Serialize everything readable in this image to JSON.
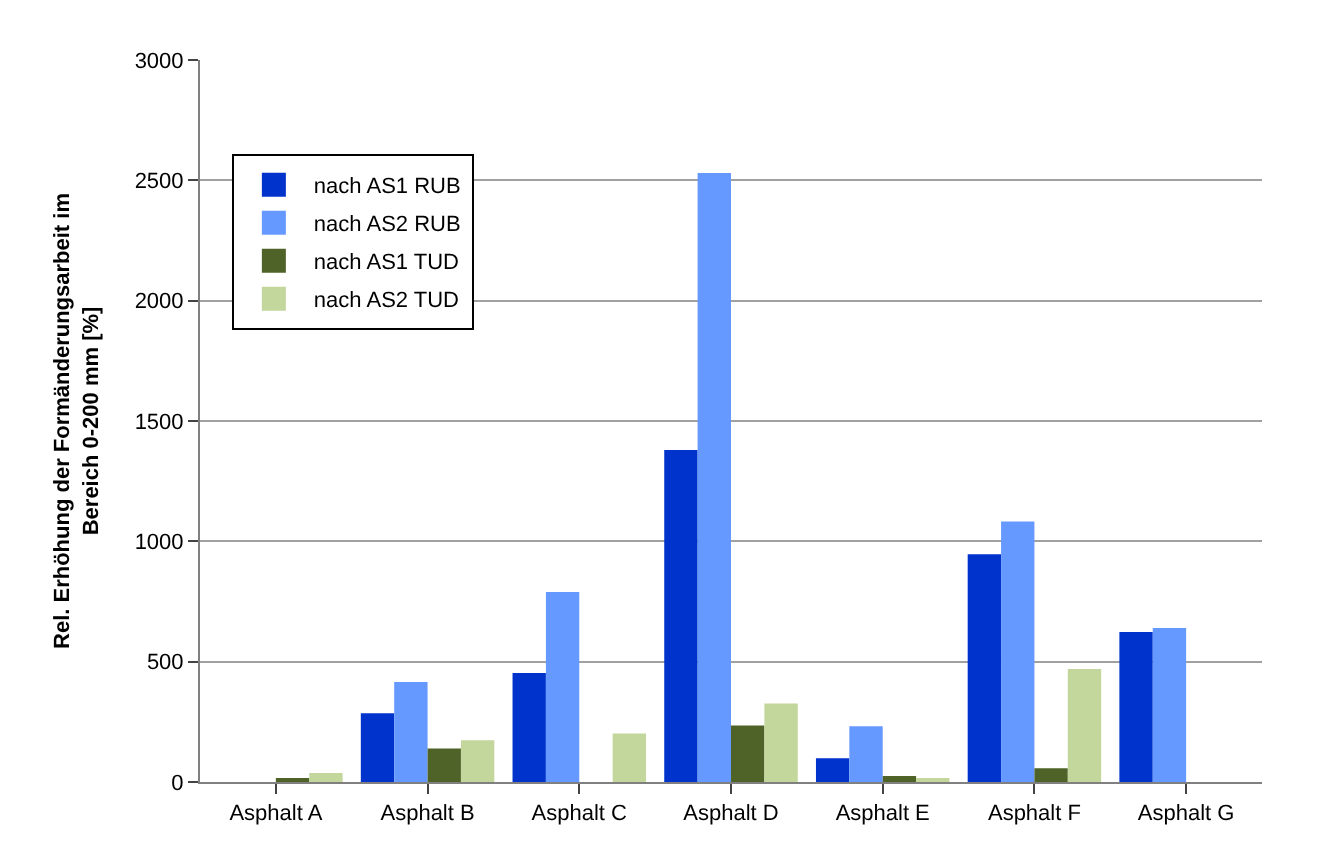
{
  "chart_data": {
    "type": "bar",
    "ylabel": "Rel. Erhöhung der Formänderungsarbeit im Bereich 0-200 mm [%]",
    "categories": [
      "Asphalt A",
      "Asphalt B",
      "Asphalt C",
      "Asphalt D",
      "Asphalt E",
      "Asphalt F",
      "Asphalt G"
    ],
    "series": [
      {
        "name": "nach AS1 RUB",
        "color": "#0033cc",
        "values": [
          0,
          286,
          453,
          1380,
          99,
          946,
          623
        ]
      },
      {
        "name": "nach AS2 RUB",
        "color": "#6699ff",
        "values": [
          0,
          416,
          790,
          2530,
          232,
          1082,
          640
        ]
      },
      {
        "name": "nach AS1 TUD",
        "color": "#4f6228",
        "values": [
          10,
          139,
          0,
          235,
          25,
          57,
          0
        ]
      },
      {
        "name": "nach AS2 TUD",
        "color": "#c3d69b",
        "values": [
          37,
          173,
          201,
          326,
          11,
          470,
          0
        ]
      }
    ],
    "ylim": [
      0,
      3000
    ],
    "yticks": [
      0,
      500,
      1000,
      1500,
      2000,
      2500,
      3000
    ],
    "grid": "y",
    "legend": "top left"
  }
}
